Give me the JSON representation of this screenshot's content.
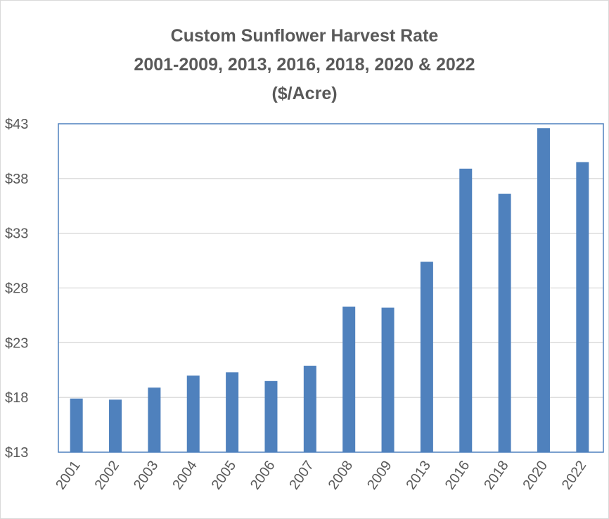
{
  "chart_data": {
    "type": "bar",
    "title_lines": [
      "Custom Sunflower Harvest Rate",
      "2001-2009, 2013, 2016, 2018, 2020 & 2022",
      "($/Acre)"
    ],
    "xlabel": "",
    "ylabel": "",
    "categories": [
      "2001",
      "2002",
      "2003",
      "2004",
      "2005",
      "2006",
      "2007",
      "2008",
      "2009",
      "2013",
      "2016",
      "2018",
      "2020",
      "2022"
    ],
    "values": [
      17.9,
      17.8,
      18.9,
      20.0,
      20.3,
      19.5,
      20.9,
      26.3,
      26.2,
      30.4,
      38.9,
      36.6,
      42.6,
      39.5
    ],
    "ylim": [
      13,
      43
    ],
    "yticks": [
      13,
      18,
      23,
      28,
      33,
      38,
      43
    ],
    "ytick_labels": [
      "$13",
      "$18",
      "$23",
      "$28",
      "$33",
      "$38",
      "$43"
    ],
    "grid": true,
    "legend": "none",
    "colors": {
      "bar": "#4F81BD",
      "grid": "#D9D9D9",
      "plot_border": "#4F81BD",
      "text": "#595959"
    }
  }
}
